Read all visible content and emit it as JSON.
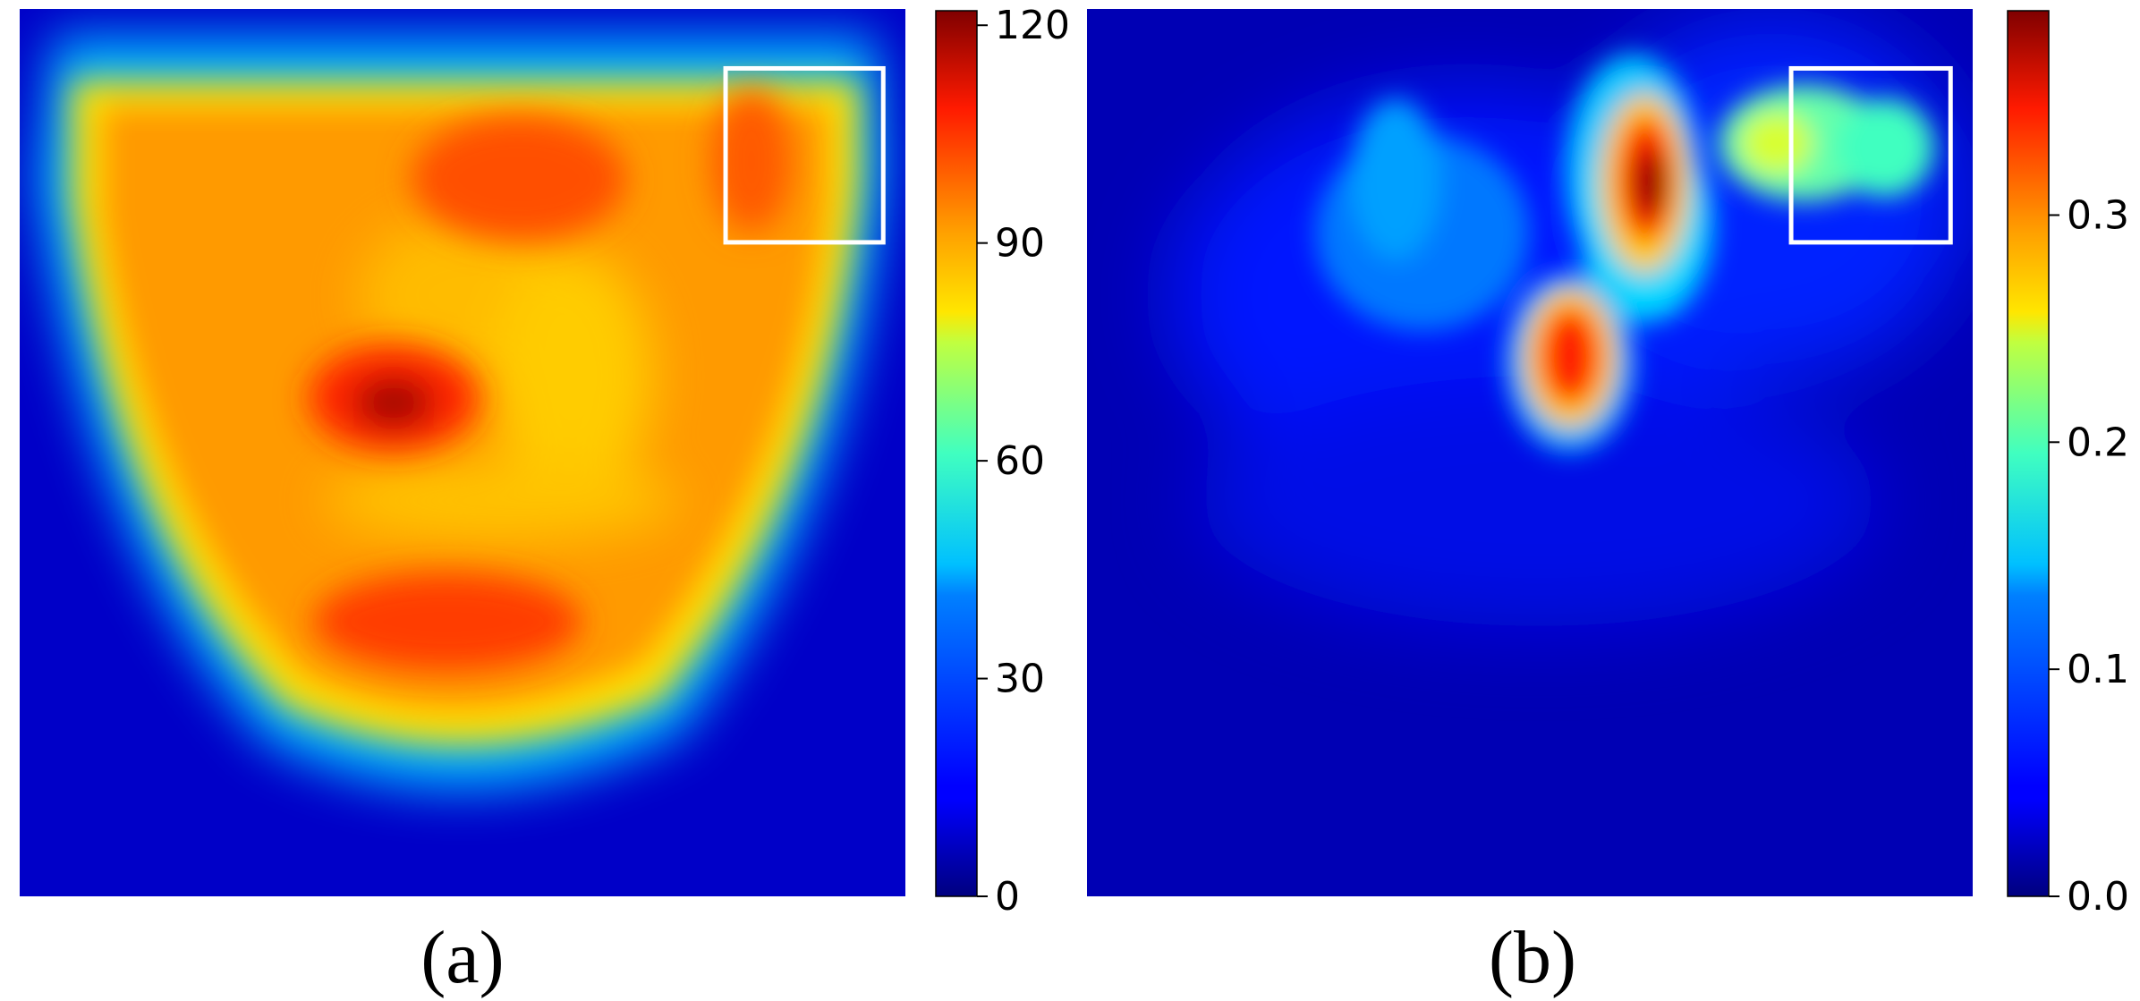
{
  "chart_data": [
    {
      "type": "heatmap",
      "panel_label": "(a)",
      "colormap": "jet",
      "colorbar": {
        "vmin": 0,
        "vmax": 122,
        "ticks": [
          0,
          30,
          60,
          90,
          120
        ],
        "tick_labels": [
          "0",
          "30",
          "60",
          "90",
          "120"
        ]
      },
      "description_values": {
        "background_level": 5,
        "band_peak_level": 92,
        "hotspot_peak_level": 120
      },
      "hotspots": [
        {
          "x_frac": 0.44,
          "y_frac": 0.45,
          "value": 120
        },
        {
          "x_frac": 0.63,
          "y_frac": 0.2,
          "value": 100
        },
        {
          "x_frac": 0.5,
          "y_frac": 0.7,
          "value": 103
        },
        {
          "x_frac": 0.86,
          "y_frac": 0.18,
          "value": 98
        }
      ],
      "highlight_box": {
        "x0_frac": 0.797,
        "y0_frac": 0.067,
        "x1_frac": 0.975,
        "y1_frac": 0.263,
        "color": "#ffffff"
      }
    },
    {
      "type": "heatmap",
      "panel_label": "(b)",
      "colormap": "jet",
      "colorbar": {
        "vmin": 0.0,
        "vmax": 0.39,
        "ticks": [
          0.0,
          0.1,
          0.2,
          0.3
        ],
        "tick_labels": [
          "0.0",
          "0.1",
          "0.2",
          "0.3"
        ]
      },
      "description_values": {
        "background_level": 0.03
      },
      "hotspots": [
        {
          "x_frac": 0.62,
          "y_frac": 0.2,
          "value": 0.39
        },
        {
          "x_frac": 0.54,
          "y_frac": 0.39,
          "value": 0.37
        },
        {
          "x_frac": 0.78,
          "y_frac": 0.15,
          "value": 0.22
        },
        {
          "x_frac": 0.91,
          "y_frac": 0.16,
          "value": 0.17
        },
        {
          "x_frac": 0.4,
          "y_frac": 0.31,
          "value": 0.14
        }
      ],
      "highlight_box": {
        "x0_frac": 0.795,
        "y0_frac": 0.067,
        "x1_frac": 0.975,
        "y1_frac": 0.263,
        "color": "#ffffff"
      }
    }
  ]
}
